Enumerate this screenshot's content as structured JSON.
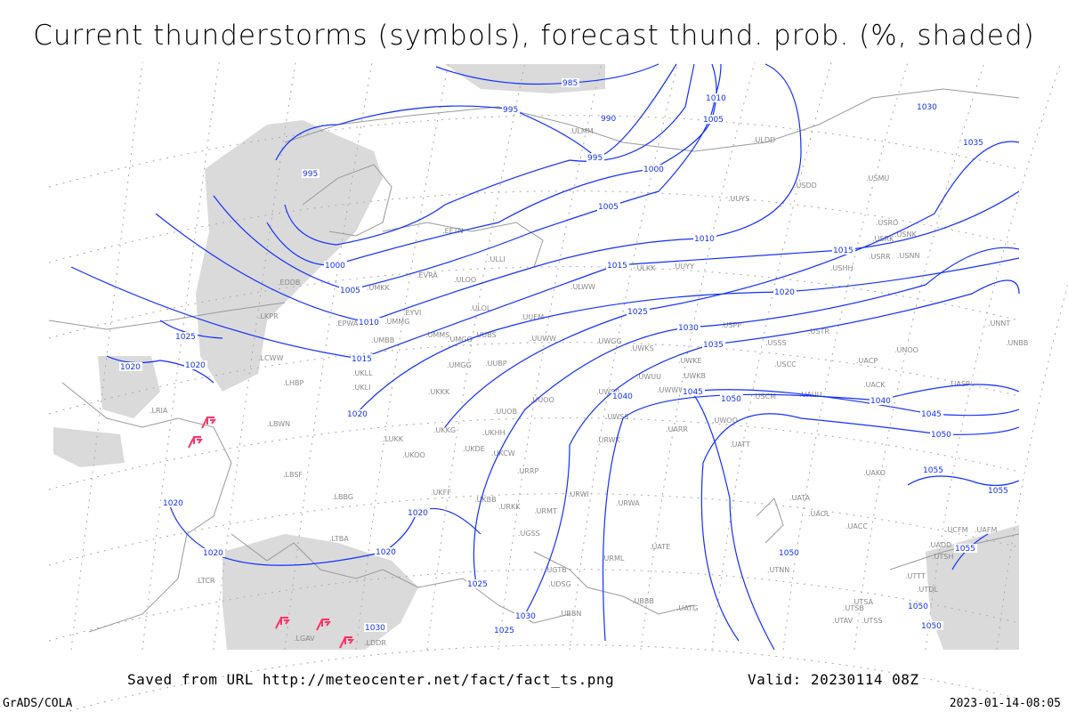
{
  "title": "Current thunderstorms (symbols), forecast thund. prob. (%, shaded)",
  "footer": {
    "saved_from": "Saved from URL http://meteocenter.net/fact/fact_ts.png",
    "valid": "Valid: 20230114 08Z",
    "software": "GrADS/COLA",
    "timestamp": "2023-01-14-08:05"
  },
  "colors": {
    "isobars": "#1030ff",
    "shading": "#d8d8d8",
    "thunderstorm_symbol": "#ff3366",
    "coastlines": "#999999"
  },
  "isobar_labels": [
    "985",
    "995",
    "990",
    "995",
    "995",
    "1000",
    "1000",
    "1005",
    "1005",
    "1005",
    "1010",
    "1010",
    "1010",
    "1015",
    "1015",
    "1015",
    "1020",
    "1020",
    "1020",
    "1020",
    "1020",
    "1020",
    "1020",
    "1020",
    "1025",
    "1025",
    "1025",
    "1025",
    "1030",
    "1030",
    "1030",
    "1030",
    "1035",
    "1035",
    "1040",
    "1040",
    "1045",
    "1045",
    "1050",
    "1050",
    "1050",
    "1050",
    "1050",
    "1055",
    "1055",
    "1055"
  ],
  "stations": [
    "EETN",
    "ULLI",
    "EVRA",
    "ULOO",
    "UMKK",
    "EYVI",
    "UMMG",
    "ULOL",
    "UUEM",
    "UMBB",
    "UMMS",
    "UMGG",
    "UUBS",
    "UUWW",
    "UKLL",
    "UKLI",
    "UMGG",
    "UUBP",
    "UKKK",
    "UUOO",
    "UUOB",
    "UKKG",
    "UKOO",
    "UKHH",
    "UKDE",
    "LUKK",
    "UKCW",
    "ULKK",
    "UUYY",
    "ULWW",
    "UWGG",
    "UWKS",
    "UWKE",
    "UWKB",
    "UWUU",
    "UWWW",
    "UWPP",
    "UWSS",
    "URWK",
    "UARR",
    "UWOO",
    "UATT",
    "USPP",
    "USSS",
    "USCC",
    "UUYS",
    "USDD",
    "USMU",
    "USRO",
    "USRK",
    "USNK",
    "USRR",
    "USNN",
    "USHH",
    "USTR",
    "UACP",
    "UNOO",
    "UACK",
    "UASP",
    "UAUU",
    "USCM",
    "UATA",
    "UAOL",
    "UACC",
    "UAKO",
    "UNBB",
    "UNNT",
    "ULMM",
    "ULDD",
    "URRP",
    "URWI",
    "URWA",
    "URMT",
    "URKK",
    "UKFF",
    "UKBB",
    "LBBG",
    "LBSF",
    "LBWN",
    "LRIA",
    "LHBP",
    "LCWW",
    "LKPR",
    "EPWA",
    "EDDB",
    "URML",
    "UBBB",
    "UGTB",
    "UGSS",
    "UBBN",
    "UDSG",
    "UATE",
    "UATG",
    "UTNN",
    "UTSA",
    "UTSB",
    "UTSS",
    "UTAV",
    "UTDL",
    "UTTT",
    "UADD",
    "UTSH",
    "UAFM",
    "UCFM",
    "LTBA",
    "LDDR",
    "LGAV",
    "LTCR"
  ],
  "thunderstorm_count": 5
}
